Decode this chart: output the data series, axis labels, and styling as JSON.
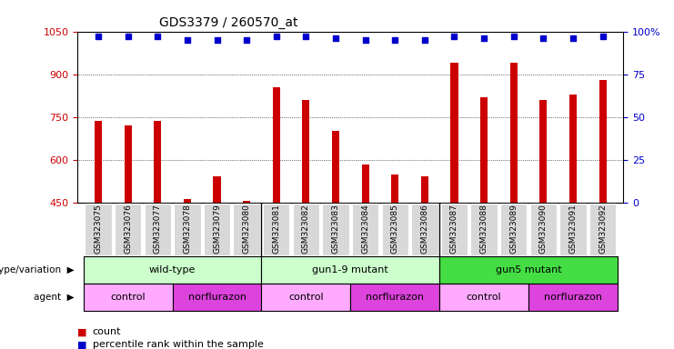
{
  "title": "GDS3379 / 260570_at",
  "samples": [
    "GSM323075",
    "GSM323076",
    "GSM323077",
    "GSM323078",
    "GSM323079",
    "GSM323080",
    "GSM323081",
    "GSM323082",
    "GSM323083",
    "GSM323084",
    "GSM323085",
    "GSM323086",
    "GSM323087",
    "GSM323088",
    "GSM323089",
    "GSM323090",
    "GSM323091",
    "GSM323092"
  ],
  "counts": [
    737,
    720,
    737,
    462,
    543,
    455,
    855,
    808,
    700,
    583,
    548,
    540,
    940,
    820,
    940,
    810,
    830,
    878
  ],
  "percentile_ranks": [
    97,
    97,
    97,
    95,
    95,
    95,
    97,
    97,
    96,
    95,
    95,
    95,
    97,
    96,
    97,
    96,
    96,
    97
  ],
  "ylim_left": [
    450,
    1050
  ],
  "ylim_right": [
    0,
    100
  ],
  "yticks_left": [
    450,
    600,
    750,
    900,
    1050
  ],
  "yticks_right": [
    0,
    25,
    50,
    75,
    100
  ],
  "bar_color": "#cc0000",
  "dot_color": "#0000cc",
  "background_color": "#ffffff",
  "tick_bg_color": "#d8d8d8",
  "groups": [
    {
      "label": "wild-type",
      "start": 0,
      "end": 6,
      "color": "#ccffcc"
    },
    {
      "label": "gun1-9 mutant",
      "start": 6,
      "end": 12,
      "color": "#ccffcc"
    },
    {
      "label": "gun5 mutant",
      "start": 12,
      "end": 18,
      "color": "#44dd44"
    }
  ],
  "agents": [
    {
      "label": "control",
      "start": 0,
      "end": 3,
      "color": "#ffaaff"
    },
    {
      "label": "norflurazon",
      "start": 3,
      "end": 6,
      "color": "#dd44dd"
    },
    {
      "label": "control",
      "start": 6,
      "end": 9,
      "color": "#ffaaff"
    },
    {
      "label": "norflurazon",
      "start": 9,
      "end": 12,
      "color": "#dd44dd"
    },
    {
      "label": "control",
      "start": 12,
      "end": 15,
      "color": "#ffaaff"
    },
    {
      "label": "norflurazon",
      "start": 15,
      "end": 18,
      "color": "#dd44dd"
    }
  ],
  "legend_count_color": "#cc0000",
  "legend_dot_color": "#0000cc",
  "genotype_label": "genotype/variation",
  "agent_label": "agent"
}
